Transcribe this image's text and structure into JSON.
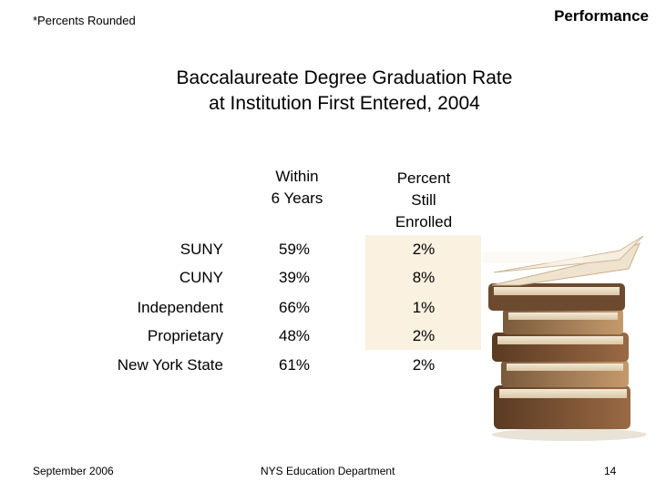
{
  "header": {
    "note": "*Percents Rounded",
    "section": "Performance"
  },
  "title": {
    "line1": "Baccalaureate Degree Graduation Rate",
    "line2": "at Institution First Entered, 2004"
  },
  "table": {
    "col1_header": [
      "Within",
      "6 Years"
    ],
    "col2_header": [
      "Percent",
      "Still",
      "Enrolled"
    ],
    "rows": [
      {
        "label": "SUNY",
        "within6": "59%",
        "still_enrolled": "2%"
      },
      {
        "label": "CUNY",
        "within6": "39%",
        "still_enrolled": "8%"
      },
      {
        "label": "Independent",
        "within6": "66%",
        "still_enrolled": "1%"
      },
      {
        "label": "Proprietary",
        "within6": "48%",
        "still_enrolled": "2%"
      },
      {
        "label": "New York State",
        "within6": "61%",
        "still_enrolled": "2%"
      }
    ]
  },
  "footer": {
    "date": "September 2006",
    "org": "NYS Education Department",
    "page": "14"
  },
  "colors": {
    "highlight": "#fbf1e0"
  },
  "decoration": {
    "image": "stack-of-books-illustration"
  }
}
